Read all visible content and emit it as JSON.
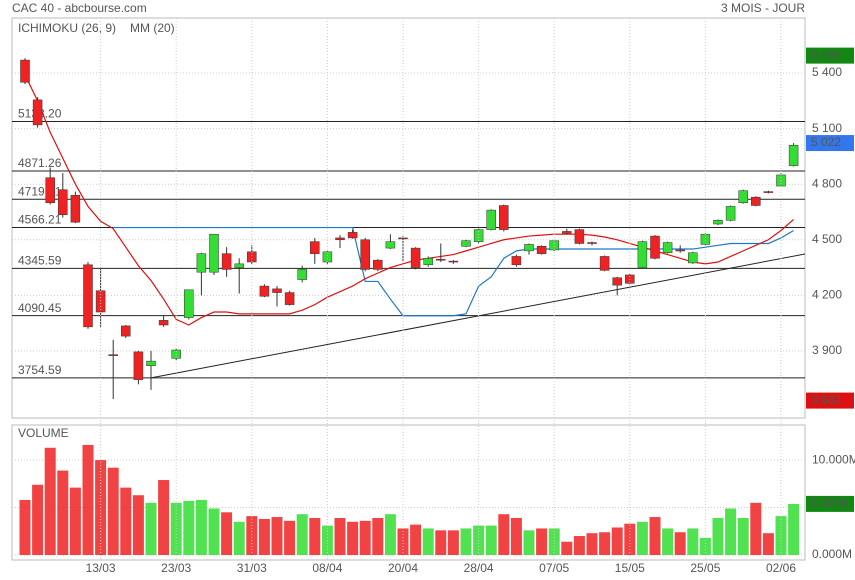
{
  "header": {
    "title": "CAC 40 - abcbourse.com",
    "period": "3 MOIS - JOUR"
  },
  "chart_data": [
    {
      "type": "candlestick",
      "open": [
        5470,
        5255,
        4835,
        4770,
        4740,
        4365,
        4225,
        3880,
        4035,
        3895,
        3820,
        4065,
        3860,
        4080,
        4325,
        4325,
        4425,
        4350,
        4435,
        4250,
        4235,
        4215,
        4285,
        4490,
        4380,
        4510,
        4540,
        4500,
        4390,
        4455,
        4510,
        4455,
        4365,
        4395,
        4385,
        4465,
        4490,
        4555,
        4685,
        4410,
        4440,
        4465,
        4445,
        4545,
        4555,
        4485,
        4410,
        4295,
        4310,
        4350,
        4520,
        4430,
        4445,
        4375,
        4475,
        4585,
        4605,
        4700,
        4730,
        4760,
        4790,
        4900
      ],
      "high": [
        5480,
        5270,
        4890,
        4860,
        4760,
        4380,
        4350,
        3960,
        4040,
        3900,
        3900,
        4090,
        3910,
        4230,
        4430,
        4530,
        4460,
        4400,
        4470,
        4260,
        4250,
        4225,
        4360,
        4510,
        4440,
        4525,
        4555,
        4510,
        4395,
        4530,
        4520,
        4460,
        4410,
        4480,
        4390,
        4500,
        4570,
        4665,
        4690,
        4420,
        4480,
        4470,
        4500,
        4560,
        4560,
        4490,
        4415,
        4300,
        4315,
        4495,
        4525,
        4490,
        4470,
        4435,
        4535,
        4610,
        4685,
        4770,
        4735,
        4765,
        4860,
        5022
      ],
      "low": [
        5340,
        5105,
        4690,
        4620,
        4590,
        4020,
        4030,
        3640,
        3970,
        3720,
        3690,
        4030,
        3850,
        4070,
        4200,
        4310,
        4300,
        4210,
        4370,
        4190,
        4140,
        4145,
        4270,
        4370,
        4370,
        4455,
        4505,
        4330,
        4330,
        4450,
        4380,
        4340,
        4355,
        4380,
        4370,
        4460,
        4480,
        4550,
        4545,
        4355,
        4420,
        4420,
        4440,
        4530,
        4475,
        4470,
        4330,
        4200,
        4260,
        4345,
        4395,
        4425,
        4430,
        4370,
        4470,
        4580,
        4600,
        4695,
        4680,
        4750,
        4785,
        4895
      ],
      "close": [
        5350,
        5120,
        4700,
        4635,
        4595,
        4030,
        4110,
        3875,
        3980,
        3745,
        3845,
        4040,
        3905,
        4230,
        4425,
        4530,
        4340,
        4370,
        4380,
        4195,
        4215,
        4150,
        4340,
        4425,
        4435,
        4500,
        4510,
        4340,
        4340,
        4490,
        4505,
        4350,
        4400,
        4390,
        4380,
        4495,
        4555,
        4660,
        4555,
        4365,
        4475,
        4425,
        4495,
        4535,
        4480,
        4480,
        4335,
        4255,
        4265,
        4490,
        4400,
        4485,
        4440,
        4430,
        4530,
        4605,
        4680,
        4765,
        4685,
        4755,
        4850,
        5010
      ],
      "up_color": "#33dd33",
      "down_color": "#ee2222",
      "series": [
        {
          "name": "ICHIMOKU (26, 9)",
          "color": "#1f78c8",
          "values": [
            null,
            null,
            null,
            null,
            null,
            null,
            null,
            4566,
            4566,
            4566,
            4566,
            4566,
            4566,
            4566,
            4566,
            4566,
            4566,
            4566,
            4566,
            4566,
            4566,
            4566,
            4566,
            4566,
            4566,
            4566,
            4566,
            4275,
            4275,
            4180,
            4090,
            4090,
            4090,
            4090,
            4090,
            4100,
            4250,
            4300,
            4400,
            4440,
            4450,
            4450,
            4450,
            4450,
            4450,
            4450,
            4450,
            4450,
            4450,
            4450,
            4450,
            4450,
            4450,
            4450,
            4460,
            4470,
            4480,
            4480,
            4480,
            4480,
            4510,
            4550
          ]
        },
        {
          "name": "MM (20)",
          "color": "#dd1111",
          "values": [
            5390,
            5250,
            5080,
            4940,
            4800,
            4680,
            4600,
            4560,
            4460,
            4360,
            4280,
            4180,
            4070,
            4040,
            4080,
            4110,
            4110,
            4100,
            4100,
            4100,
            4100,
            4100,
            4120,
            4150,
            4190,
            4220,
            4250,
            4290,
            4320,
            4350,
            4370,
            4390,
            4400,
            4410,
            4420,
            4440,
            4460,
            4480,
            4500,
            4510,
            4520,
            4525,
            4530,
            4530,
            4530,
            4525,
            4515,
            4500,
            4480,
            4460,
            4440,
            4420,
            4400,
            4380,
            4370,
            4380,
            4410,
            4440,
            4470,
            4500,
            4550,
            4610
          ]
        }
      ],
      "levels": [
        {
          "value": 5138.2,
          "label": "5138.20"
        },
        4871.26,
        4719.01,
        4566.21,
        4345.59,
        4090.45,
        3754.59
      ],
      "trendline": {
        "x": [
          10,
          61.9
        ],
        "y": [
          3754.59,
          4423
        ]
      },
      "markers": [
        {
          "value": 5494,
          "label": "5 494",
          "color": "#118811"
        },
        {
          "value": 5022,
          "label": "5 022",
          "color": "#3377ee"
        },
        {
          "value": 3632,
          "label": "3 632",
          "color": "#dd1111"
        }
      ],
      "ylim": [
        3538,
        5697
      ],
      "yticks": [
        {
          "value": 3900,
          "label": "3 900"
        },
        {
          "value": 4200,
          "label": "4 200"
        },
        {
          "value": 4500,
          "label": "4 500"
        },
        {
          "value": 4800,
          "label": "4 800"
        },
        {
          "value": 5100,
          "label": "5 100"
        },
        {
          "value": 5400,
          "label": "5 400"
        }
      ],
      "grid": true
    },
    {
      "type": "bar",
      "title": "VOLUME",
      "categories": [
        null,
        null,
        null,
        null,
        null,
        null,
        "13/03",
        null,
        null,
        null,
        null,
        null,
        "23/03",
        null,
        null,
        null,
        null,
        null,
        "31/03",
        null,
        null,
        null,
        null,
        null,
        "08/04",
        null,
        null,
        null,
        null,
        null,
        "20/04",
        null,
        null,
        null,
        null,
        null,
        "28/04",
        null,
        null,
        null,
        null,
        null,
        "07/05",
        null,
        null,
        null,
        null,
        null,
        "15/05",
        null,
        null,
        null,
        null,
        null,
        "25/05",
        null,
        null,
        null,
        null,
        null,
        "02/06",
        null
      ],
      "values": [
        5.8,
        7.4,
        11.3,
        8.9,
        7.1,
        11.6,
        10.0,
        9.2,
        7.1,
        6.3,
        5.5,
        7.9,
        5.5,
        5.7,
        5.8,
        4.9,
        4.5,
        3.5,
        4.1,
        3.8,
        4.0,
        3.6,
        4.3,
        3.9,
        3.1,
        3.9,
        3.5,
        3.6,
        3.9,
        4.3,
        2.8,
        3.2,
        2.8,
        2.6,
        2.6,
        2.8,
        3.1,
        3.1,
        4.3,
        3.9,
        2.6,
        2.8,
        2.8,
        1.4,
        2.0,
        2.3,
        2.4,
        2.9,
        3.3,
        3.5,
        4.0,
        2.8,
        2.4,
        2.8,
        1.8,
        3.9,
        4.9,
        3.9,
        5.5,
        2.3,
        4.1,
        5.385
      ],
      "markers": [
        {
          "value": 5.385,
          "label": "5 385K",
          "color": "#118811"
        }
      ],
      "ylim": [
        0,
        13.7
      ],
      "yticks": [
        {
          "value": 0,
          "label": "0.000M"
        },
        {
          "value": 5,
          "label": "5.000M"
        },
        {
          "value": 10,
          "label": "10.000M"
        }
      ],
      "grid": true
    }
  ]
}
